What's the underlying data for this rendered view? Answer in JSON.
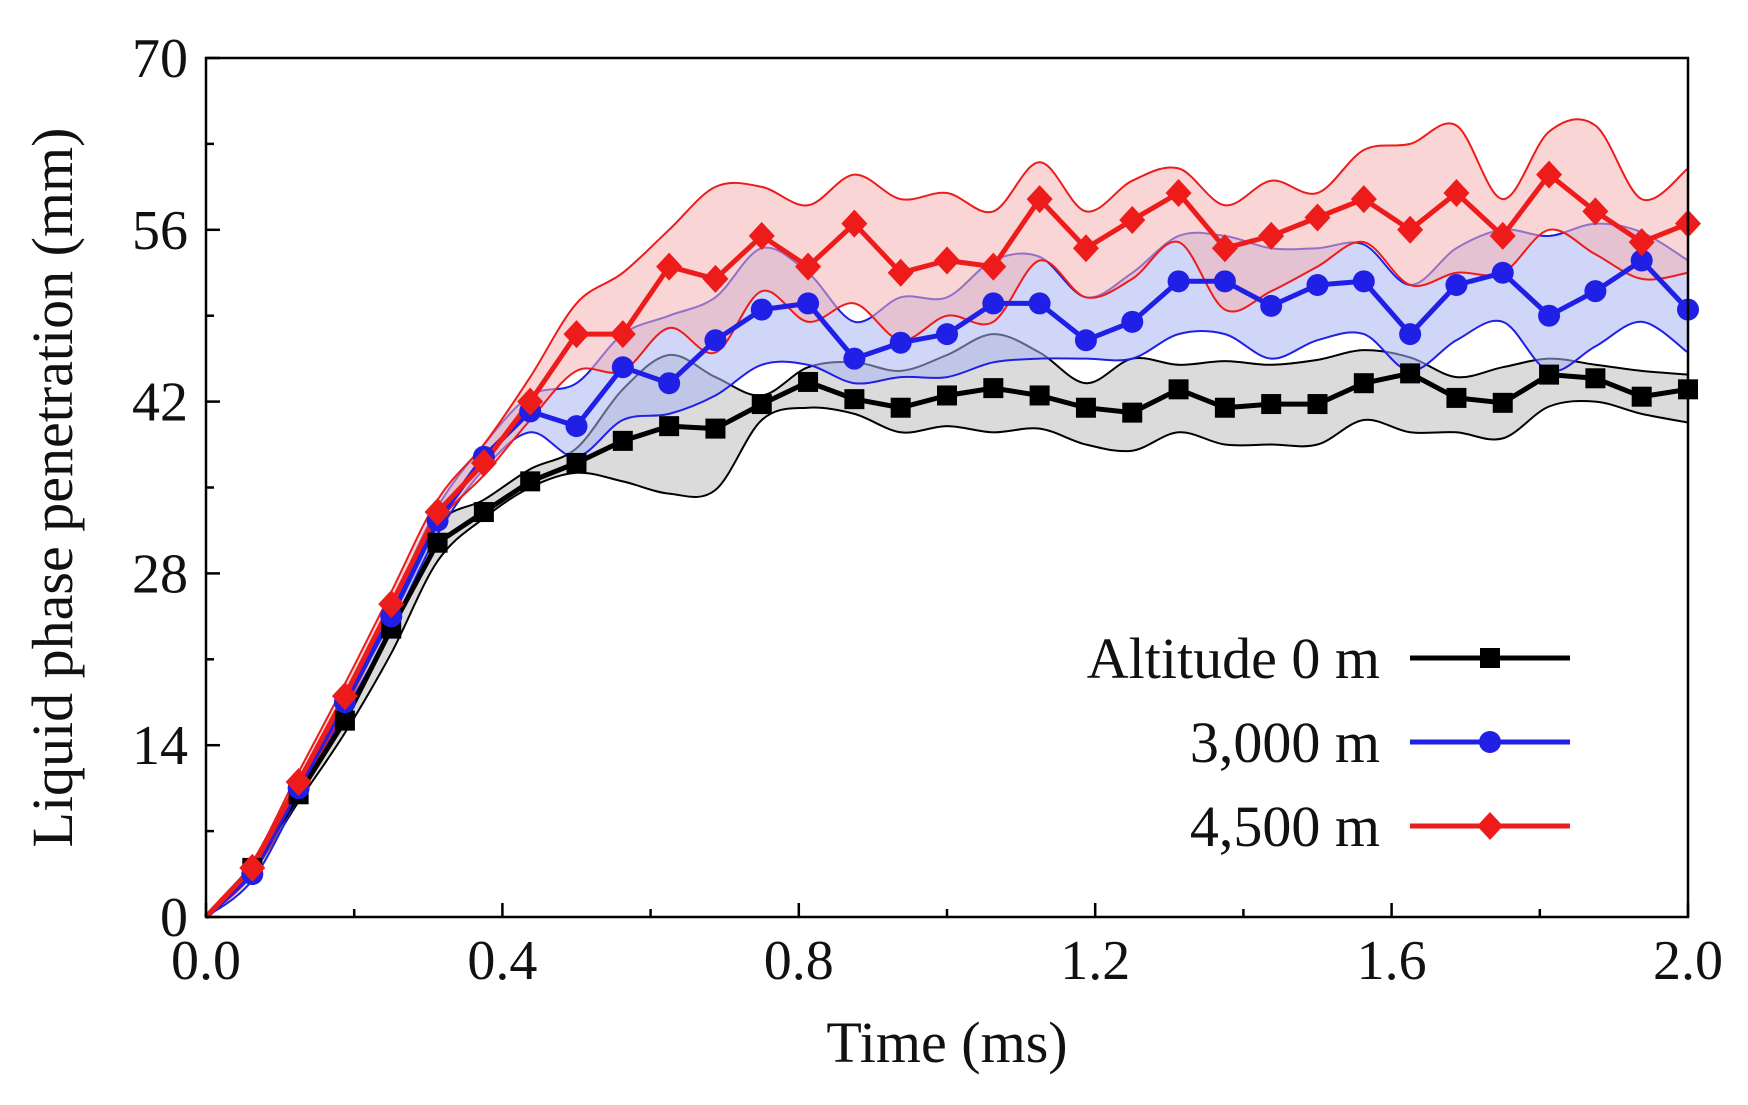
{
  "chart_data": {
    "type": "line",
    "title": "",
    "xlabel": "Time (ms)",
    "ylabel": "Liquid phase penetration (mm)",
    "xlim": [
      0,
      2.0
    ],
    "ylim": [
      0,
      70
    ],
    "xticks": [
      "0.0",
      "0.4",
      "0.8",
      "1.2",
      "1.6",
      "2.0"
    ],
    "xtick_values": [
      0,
      0.4,
      0.8,
      1.2,
      1.6,
      2.0
    ],
    "yticks": [
      "0",
      "14",
      "28",
      "42",
      "56",
      "70"
    ],
    "ytick_values": [
      0,
      14,
      28,
      42,
      56,
      70
    ],
    "grid": false,
    "legend_position": "lower-right",
    "x": [
      0,
      0.0625,
      0.125,
      0.1875,
      0.25,
      0.3125,
      0.375,
      0.4375,
      0.5,
      0.5625,
      0.625,
      0.6875,
      0.75,
      0.8125,
      0.875,
      0.9375,
      1.0,
      1.0625,
      1.125,
      1.1875,
      1.25,
      1.3125,
      1.375,
      1.4375,
      1.5,
      1.5625,
      1.625,
      1.6875,
      1.75,
      1.8125,
      1.875,
      1.9375,
      2.0
    ],
    "series": [
      {
        "name": "Altitude 0 m",
        "color": "#000000",
        "band_color": "#bdbdbd",
        "marker": "square",
        "values": [
          0,
          4,
          10,
          16,
          23.5,
          30.5,
          33,
          35.5,
          37,
          38.8,
          40,
          39.8,
          41.8,
          43.6,
          42.2,
          41.5,
          42.5,
          43.1,
          42.5,
          41.5,
          41.1,
          43,
          41.5,
          41.8,
          41.8,
          43.5,
          44.3,
          42.3,
          41.9,
          44.2,
          43.9,
          42.4,
          43
        ],
        "upper": [
          0,
          4.4,
          10.6,
          17,
          24.8,
          32,
          34,
          36.5,
          38.2,
          43,
          45.8,
          44,
          42.5,
          44.8,
          45.2,
          44.5,
          45.8,
          47.5,
          46,
          43.5,
          45.5,
          45,
          45.3,
          45,
          45.4,
          46.2,
          45.6,
          44,
          44.8,
          45.5,
          45,
          44.5,
          44.2
        ],
        "lower": [
          0,
          3.6,
          9.4,
          15,
          21.5,
          29,
          32.5,
          35,
          36.2,
          35.5,
          34.5,
          34.8,
          40.5,
          41.5,
          41,
          39.5,
          40,
          39.5,
          39.8,
          38.5,
          38,
          39.5,
          38.5,
          38.5,
          38.5,
          40.5,
          39.5,
          39.5,
          39,
          41.6,
          42,
          41,
          40.3
        ]
      },
      {
        "name": "3,000 m",
        "color": "#1f1fe6",
        "band_color": "#aab4f2",
        "marker": "circle",
        "values": [
          0,
          3.5,
          10.5,
          17.5,
          24.5,
          32.3,
          37.5,
          41.2,
          40,
          44.8,
          43.5,
          47,
          49.5,
          50,
          45.5,
          46.8,
          47.5,
          50,
          50,
          47,
          48.5,
          51.8,
          51.8,
          49.8,
          51.5,
          51.8,
          47.5,
          51.5,
          52.5,
          49,
          51,
          53.5,
          49.5
        ],
        "upper": [
          0,
          4,
          11.2,
          18.3,
          25.5,
          33.4,
          38.5,
          42.5,
          43.5,
          47.5,
          49,
          50.5,
          54.5,
          52.5,
          48.5,
          50.5,
          50.5,
          53.5,
          53.8,
          50.5,
          52.5,
          55.5,
          55.5,
          54.5,
          54.5,
          54.8,
          51.5,
          54.5,
          56,
          55.5,
          56.5,
          55.8,
          53.5
        ],
        "lower": [
          0,
          3,
          9.8,
          16.7,
          23.5,
          31.2,
          36.5,
          39.5,
          37.5,
          40.5,
          41,
          42.5,
          45,
          45,
          43.5,
          44,
          44,
          45.2,
          45.5,
          45.5,
          45.5,
          47.5,
          47.5,
          45.5,
          47,
          47.5,
          44.5,
          47,
          48.5,
          44.5,
          46.5,
          48.5,
          46
        ]
      },
      {
        "name": "4,500 m",
        "color": "#ee1b1b",
        "band_color": "#f4b2b2",
        "marker": "diamond",
        "values": [
          0,
          4,
          11,
          18,
          25.5,
          33,
          37,
          42,
          47.5,
          47.5,
          53,
          52,
          55.5,
          53,
          56.5,
          52.5,
          53.5,
          53,
          58.5,
          54.5,
          56.8,
          59,
          54.5,
          55.5,
          57,
          58.5,
          56,
          59,
          55.5,
          60.5,
          57.5,
          55,
          56.5
        ],
        "upper": [
          0,
          4.5,
          11.8,
          19,
          26.5,
          34,
          38.5,
          44,
          50,
          52.5,
          56,
          59.5,
          59.5,
          58,
          60.5,
          58.5,
          59,
          57.5,
          61.5,
          57.5,
          60,
          61,
          58,
          60,
          59,
          62.5,
          63,
          64.5,
          58.5,
          64,
          64.5,
          58.5,
          61
        ]
      }
    ],
    "red_lower": [
      0,
      3.5,
      10.2,
      17,
      24.5,
      32,
      36,
      40.5,
      44.5,
      44.5,
      48,
      46,
      51,
      48.5,
      50,
      47,
      49,
      48.5,
      53.5,
      50.5,
      52,
      55,
      49.5,
      51,
      53,
      55,
      51.5,
      52.5,
      52.5,
      56,
      54,
      52,
      52.5
    ]
  }
}
